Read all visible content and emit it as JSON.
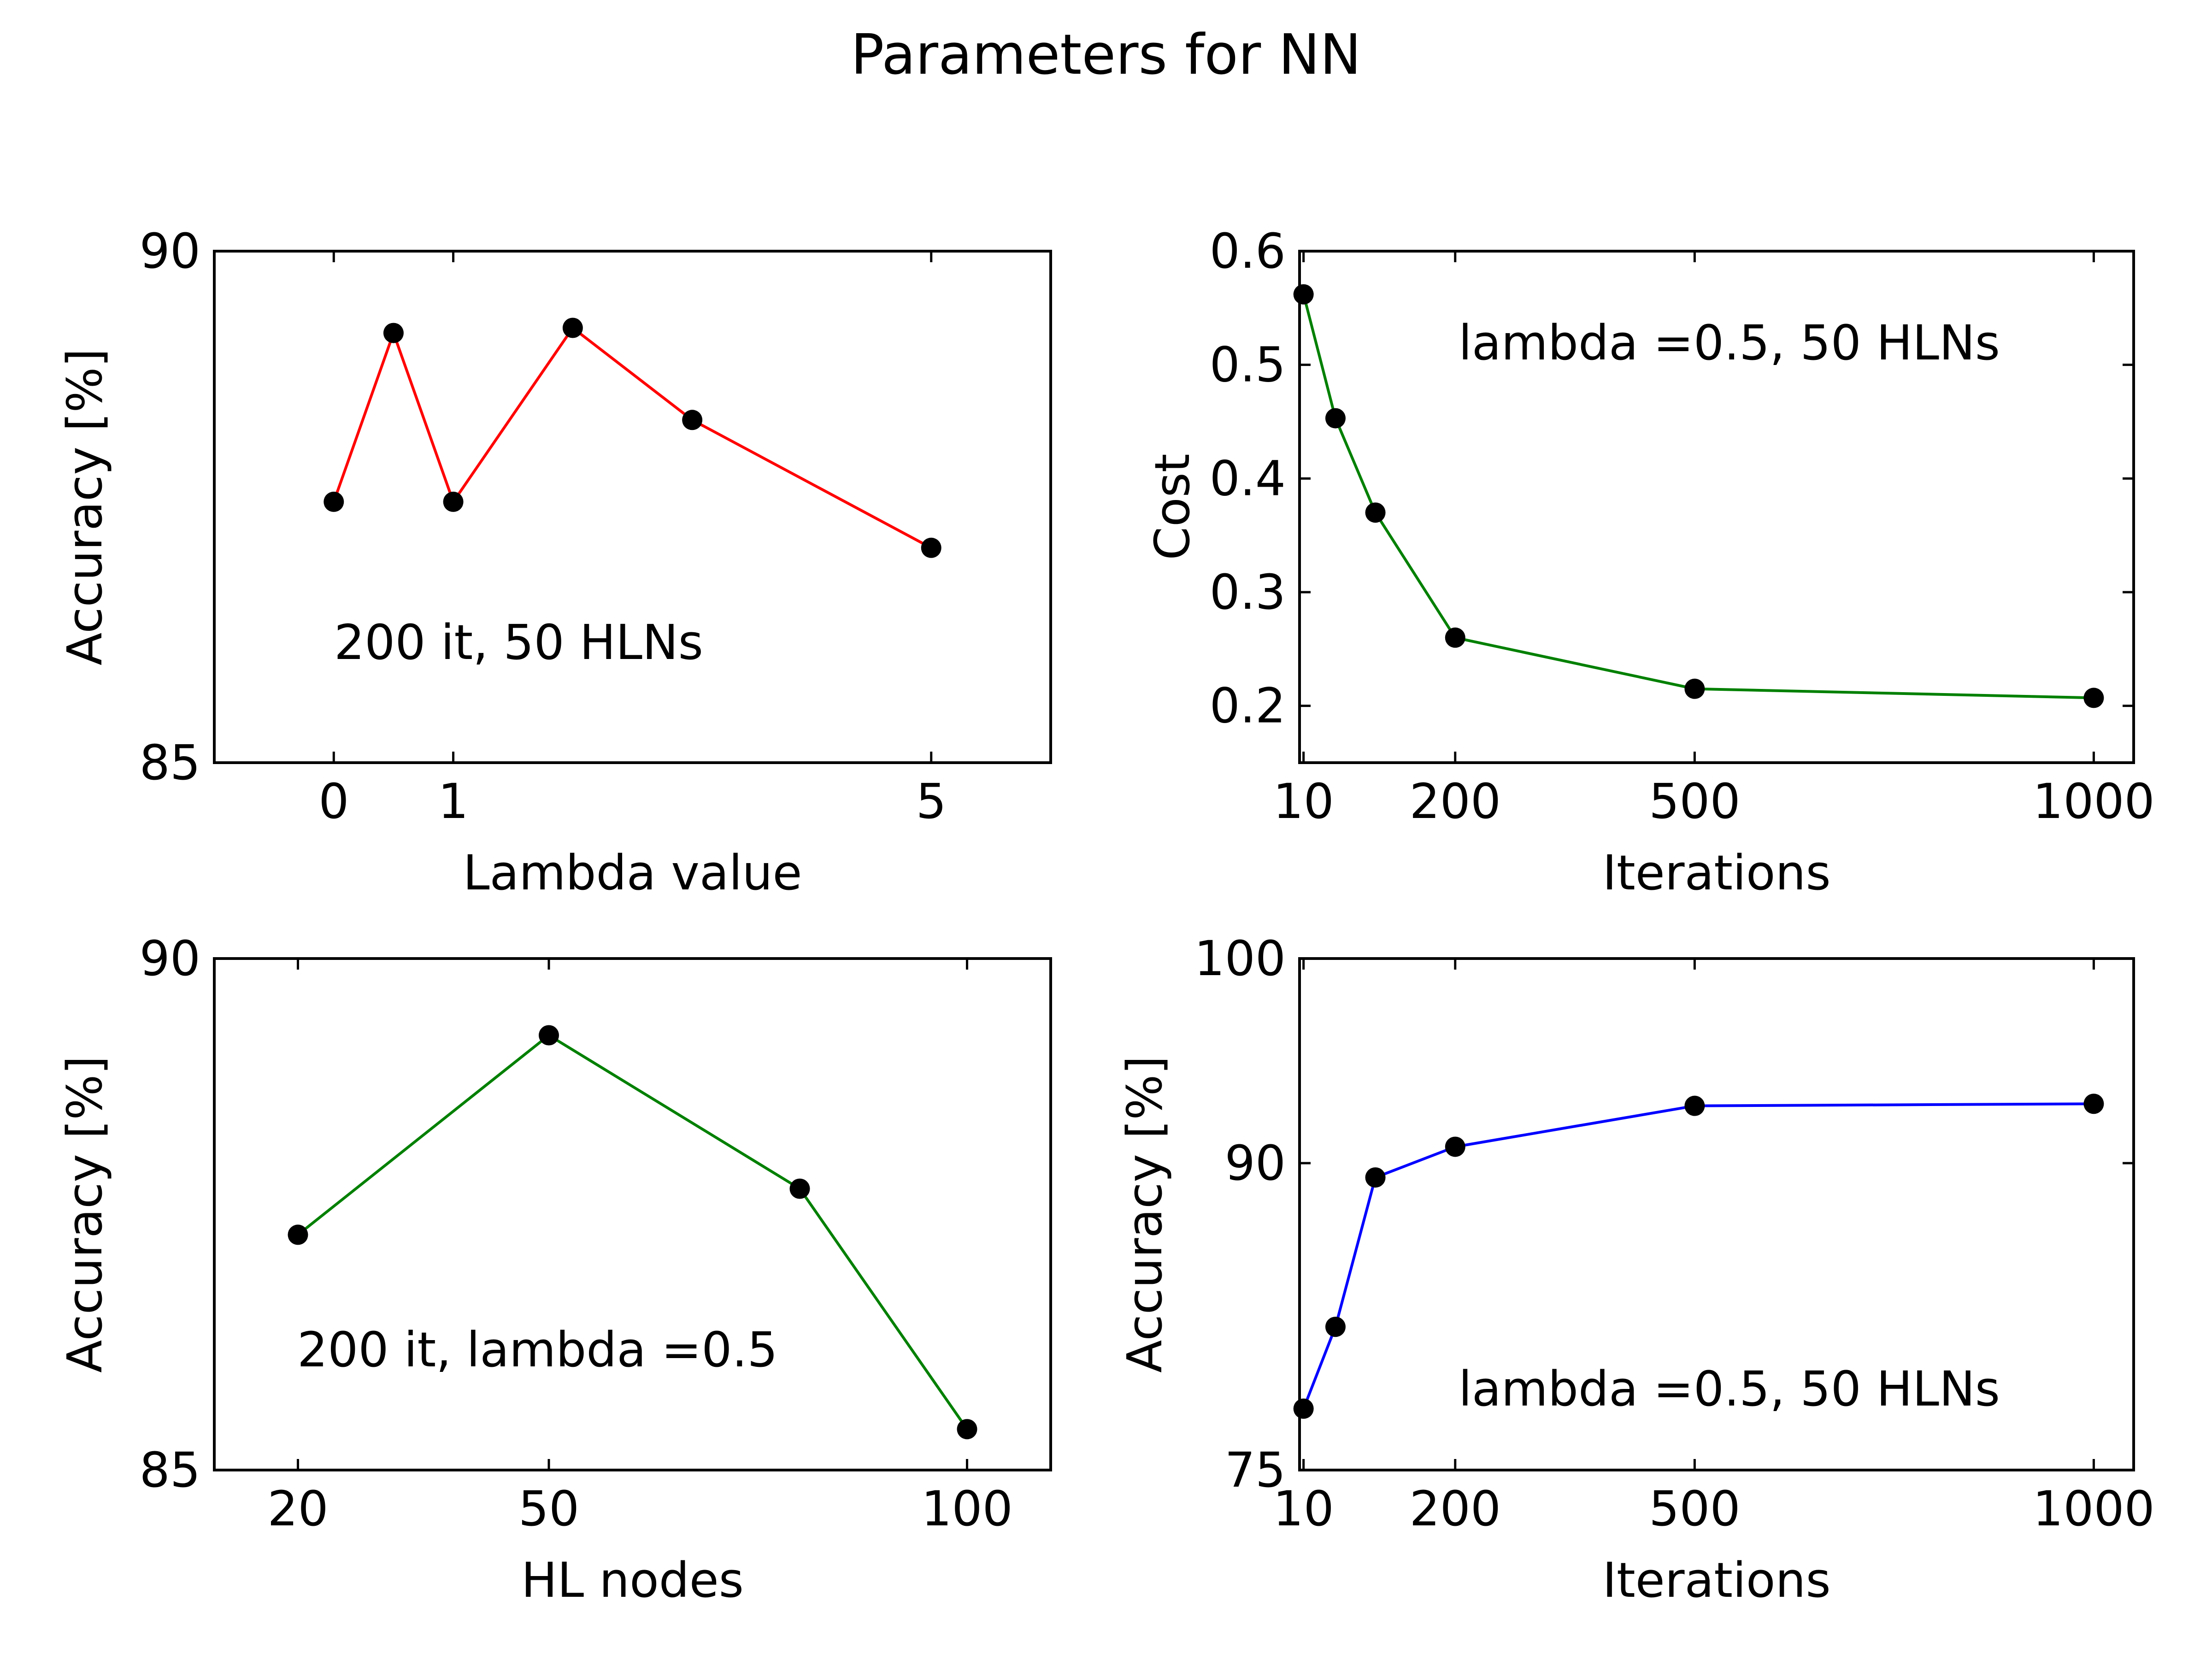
{
  "figure_title": "Parameters for NN",
  "chart_data": [
    {
      "type": "line",
      "id": "lambda",
      "xlabel": "Lambda value",
      "ylabel": "Accuracy [%]",
      "xlim": [
        -1,
        6
      ],
      "ylim": [
        85,
        90
      ],
      "xticks": [
        0,
        1,
        5
      ],
      "xtick_labels": [
        "0",
        "1",
        "5"
      ],
      "yticks": [
        85,
        90
      ],
      "ytick_labels": [
        "85",
        "90"
      ],
      "x": [
        0,
        0.5,
        1,
        2,
        3,
        5
      ],
      "y": [
        87.55,
        89.2,
        87.55,
        89.25,
        88.35,
        87.1
      ],
      "color": "#ff0000",
      "annotation": "200 it, 50 HLNs"
    },
    {
      "type": "line",
      "id": "cost",
      "xlabel": "Iterations",
      "ylabel": "Cost",
      "xlim": [
        5,
        1050
      ],
      "ylim": [
        0.15,
        0.6
      ],
      "xticks": [
        10,
        200,
        500,
        1000
      ],
      "xtick_labels": [
        "10",
        "200",
        "500",
        "1000"
      ],
      "yticks": [
        0.2,
        0.3,
        0.4,
        0.5,
        0.6
      ],
      "ytick_labels": [
        "0.2",
        "0.3",
        "0.4",
        "0.5",
        "0.6"
      ],
      "x": [
        10,
        50,
        100,
        200,
        500,
        1000
      ],
      "y": [
        0.562,
        0.453,
        0.37,
        0.26,
        0.215,
        0.207
      ],
      "color": "#008000",
      "annotation": "lambda =0.5, 50 HLNs"
    },
    {
      "type": "line",
      "id": "hlnodes",
      "xlabel": "HL nodes",
      "ylabel": "Accuracy [%]",
      "xlim": [
        10,
        110
      ],
      "ylim": [
        85,
        90
      ],
      "xticks": [
        20,
        50,
        100
      ],
      "xtick_labels": [
        "20",
        "50",
        "100"
      ],
      "yticks": [
        85,
        90
      ],
      "ytick_labels": [
        "85",
        "90"
      ],
      "x": [
        20,
        50,
        80,
        100
      ],
      "y": [
        87.3,
        89.25,
        87.75,
        85.4
      ],
      "color": "#008000",
      "annotation": "200 it, lambda =0.5"
    },
    {
      "type": "line",
      "id": "accuracy",
      "xlabel": "Iterations",
      "ylabel": "Accuracy [%]",
      "xlim": [
        5,
        1050
      ],
      "ylim": [
        75,
        100
      ],
      "xticks": [
        10,
        200,
        500,
        1000
      ],
      "xtick_labels": [
        "10",
        "200",
        "500",
        "1000"
      ],
      "yticks": [
        75,
        90,
        100
      ],
      "ytick_labels": [
        "75",
        "90",
        "100"
      ],
      "x": [
        10,
        50,
        100,
        200,
        500,
        1000
      ],
      "y": [
        78.0,
        82.0,
        89.3,
        90.8,
        92.8,
        92.9
      ],
      "color": "#0000ff",
      "annotation": "lambda =0.5, 50 HLNs"
    }
  ]
}
